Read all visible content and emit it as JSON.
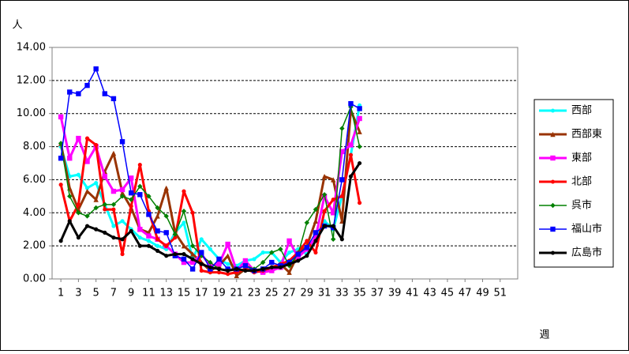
{
  "chart_data": {
    "type": "line",
    "y_label": "人",
    "x_label": "週",
    "x": [
      1,
      2,
      3,
      4,
      5,
      6,
      7,
      8,
      9,
      10,
      11,
      12,
      13,
      14,
      15,
      16,
      17,
      18,
      19,
      20,
      21,
      22,
      23,
      24,
      25,
      26,
      27,
      28,
      29,
      30,
      31,
      32,
      33,
      34,
      35
    ],
    "xlim": [
      0,
      53
    ],
    "xticks": [
      1,
      3,
      5,
      7,
      9,
      11,
      13,
      15,
      17,
      19,
      21,
      23,
      25,
      27,
      29,
      31,
      33,
      35,
      37,
      39,
      41,
      43,
      45,
      47,
      49,
      51
    ],
    "ylim": [
      0,
      14
    ],
    "yticks": [
      {
        "value": 0,
        "label": "0.00"
      },
      {
        "value": 2,
        "label": "2.00"
      },
      {
        "value": 4,
        "label": "4.00"
      },
      {
        "value": 6,
        "label": "6.00"
      },
      {
        "value": 8,
        "label": "8.00"
      },
      {
        "value": 10,
        "label": "10.00"
      },
      {
        "value": 12,
        "label": "12.00"
      },
      {
        "value": 14,
        "label": "14.00"
      }
    ],
    "grid": true,
    "legend": "right",
    "series": [
      {
        "name": "西部",
        "color": "#00ffff",
        "marker": "circle",
        "line_width": 3,
        "values": [
          8.0,
          6.2,
          6.3,
          5.5,
          5.8,
          4.5,
          3.2,
          3.5,
          3.0,
          2.5,
          2.3,
          2.0,
          1.8,
          2.8,
          3.4,
          1.2,
          2.4,
          1.8,
          1.2,
          0.9,
          0.8,
          1.1,
          1.2,
          1.6,
          1.6,
          1.0,
          1.6,
          1.8,
          1.5,
          2.5,
          3.5,
          3.0,
          5.0,
          7.5,
          10.5
        ]
      },
      {
        "name": "西部東",
        "color": "#993300",
        "marker": "triangle",
        "line_width": 3,
        "values": [
          8.2,
          5.5,
          4.2,
          5.3,
          4.8,
          6.5,
          7.6,
          5.2,
          4.3,
          3.0,
          2.8,
          3.8,
          5.5,
          2.8,
          2.0,
          1.5,
          1.0,
          0.5,
          0.8,
          1.4,
          0.2,
          0.6,
          0.5,
          0.5,
          0.6,
          0.9,
          0.4,
          1.5,
          2.0,
          3.5,
          6.2,
          6.0,
          3.5,
          10.2,
          8.9
        ]
      },
      {
        "name": "東部",
        "color": "#ff00ff",
        "marker": "square",
        "line_width": 3,
        "values": [
          9.8,
          7.3,
          8.5,
          7.1,
          8.0,
          6.2,
          5.3,
          5.4,
          6.1,
          3.0,
          2.6,
          2.4,
          2.0,
          1.5,
          1.0,
          1.0,
          1.5,
          0.8,
          0.9,
          2.1,
          0.5,
          1.1,
          0.5,
          0.4,
          0.5,
          0.7,
          2.3,
          1.3,
          1.8,
          2.5,
          5.0,
          4.0,
          7.7,
          8.1,
          9.7
        ]
      },
      {
        "name": "北部",
        "color": "#ff0000",
        "marker": "circle",
        "line_width": 3,
        "values": [
          5.7,
          3.5,
          4.5,
          8.5,
          8.1,
          4.2,
          4.2,
          1.5,
          4.4,
          6.9,
          4.1,
          2.4,
          2.0,
          2.5,
          5.3,
          4.0,
          0.5,
          0.4,
          0.4,
          0.3,
          0.4,
          0.6,
          0.4,
          0.5,
          0.7,
          0.9,
          1.1,
          1.6,
          2.3,
          1.6,
          4.1,
          4.8,
          5.0,
          7.5,
          4.6
        ]
      },
      {
        "name": "呉市",
        "color": "#008000",
        "marker": "diamond",
        "line_width": 1.5,
        "values": [
          8.2,
          5.0,
          4.0,
          3.8,
          4.3,
          4.5,
          4.5,
          5.0,
          4.8,
          5.6,
          5.0,
          4.3,
          3.8,
          2.7,
          4.1,
          2.0,
          1.4,
          1.0,
          0.6,
          0.5,
          0.6,
          0.8,
          0.6,
          1.0,
          1.6,
          1.8,
          0.8,
          1.5,
          3.4,
          4.2,
          5.1,
          2.4,
          9.1,
          10.4,
          8.0
        ]
      },
      {
        "name": "福山市",
        "color": "#0000ff",
        "marker": "square",
        "line_width": 1.5,
        "values": [
          7.3,
          11.3,
          11.2,
          11.7,
          12.7,
          11.2,
          10.9,
          8.3,
          5.2,
          5.1,
          3.9,
          2.9,
          2.8,
          1.4,
          1.2,
          0.6,
          1.6,
          0.6,
          1.2,
          0.6,
          0.6,
          0.8,
          0.5,
          0.6,
          1.0,
          0.8,
          1.0,
          1.5,
          1.9,
          2.8,
          3.2,
          3.1,
          6.0,
          10.6,
          10.3
        ]
      },
      {
        "name": "広島市",
        "color": "#000000",
        "marker": "circle",
        "line_width": 3,
        "values": [
          2.3,
          3.5,
          2.5,
          3.2,
          3.0,
          2.8,
          2.5,
          2.4,
          2.9,
          2.0,
          2.0,
          1.7,
          1.4,
          1.5,
          1.5,
          1.2,
          0.9,
          0.7,
          0.6,
          0.5,
          0.6,
          0.5,
          0.5,
          0.6,
          0.7,
          0.7,
          0.9,
          1.1,
          1.4,
          2.3,
          3.2,
          3.2,
          2.4,
          6.2,
          7.0
        ]
      }
    ]
  }
}
